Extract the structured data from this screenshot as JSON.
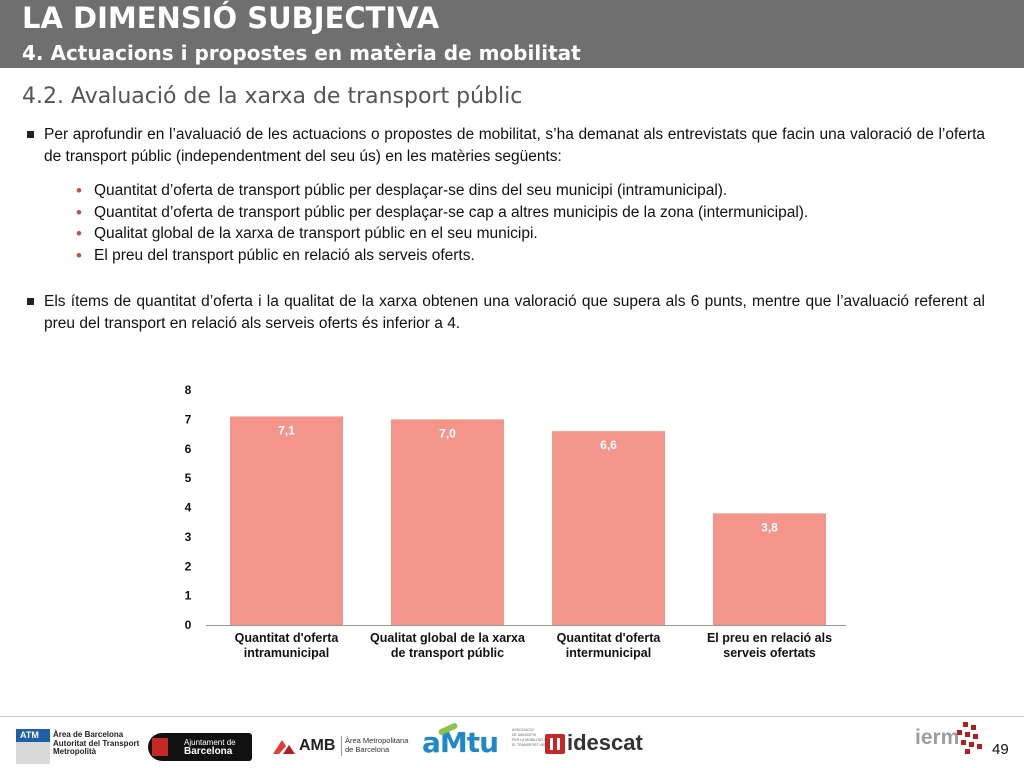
{
  "header": {
    "title": "LA DIMENSIÓ SUBJECTIVA",
    "subtitle": "4. Actuacions i propostes en matèria de mobilitat"
  },
  "section": {
    "title": "4.2. Avaluació de la xarxa de transport públic"
  },
  "paragraph1": "Per aprofundir en l’avaluació de les actuacions o propostes de mobilitat, s’ha demanat als entrevistats que facin una valoració de l’oferta de transport públic (independentment del seu ús) en les matèries següents:",
  "sublist": [
    "Quantitat d’oferta de transport públic per desplaçar-se dins del seu municipi (intramunicipal).",
    "Quantitat d’oferta de transport públic per desplaçar-se cap a altres municipis de la zona (intermunicipal).",
    "Qualitat global de la xarxa de transport públic en el seu municipi.",
    "El preu del transport públic en relació als serveis oferts."
  ],
  "paragraph2": "Els ítems de quantitat d’oferta i la qualitat de la xarxa obtenen una valoració que supera als 6 punts, mentre que l’avaluació referent al preu del transport en relació als serveis oferts és inferior a 4.",
  "chart_data": {
    "type": "bar",
    "categories": [
      [
        "Quantitat d'oferta",
        "intramunicipal"
      ],
      [
        "Qualitat global de la xarxa",
        "de transport públic"
      ],
      [
        "Quantitat d'oferta",
        "intermunicipal"
      ],
      [
        "El preu en relació als",
        "serveis ofertats"
      ]
    ],
    "values": [
      7.1,
      7.0,
      6.6,
      3.8
    ],
    "data_labels": [
      "7,1",
      "7,0",
      "6,6",
      "3,8"
    ],
    "ylim": [
      0,
      8
    ],
    "yticks": [
      0,
      1,
      2,
      3,
      4,
      5,
      6,
      7,
      8
    ],
    "bar_color": "#f4958c",
    "grid": false
  },
  "footer": {
    "logos": [
      {
        "name": "ATM",
        "text": "ATM",
        "lines": [
          "Àrea de Barcelona",
          "Autoritat del Transport",
          "Metropolità"
        ]
      },
      {
        "name": "Ajuntament de Barcelona",
        "lines": [
          "Ajuntament de",
          "Barcelona"
        ]
      },
      {
        "name": "AMB",
        "text": "AMB",
        "lines": [
          "Àrea Metropolitana",
          "de Barcelona"
        ]
      },
      {
        "name": "AMTU",
        "text": "aMtu",
        "lines": [
          "ASSOCIACIÓ",
          "DE MUNICIPIS",
          "PER LA MOBILITAT I",
          "EL TRANSPORT URBÀ"
        ]
      },
      {
        "name": "idescat",
        "text": "idescat"
      },
      {
        "name": "iermb",
        "text": "ierm"
      }
    ],
    "page_number": "49"
  },
  "colors": {
    "header_bg": "#6f6f6f",
    "accent": "#c0504d",
    "bar": "#f4958c"
  }
}
